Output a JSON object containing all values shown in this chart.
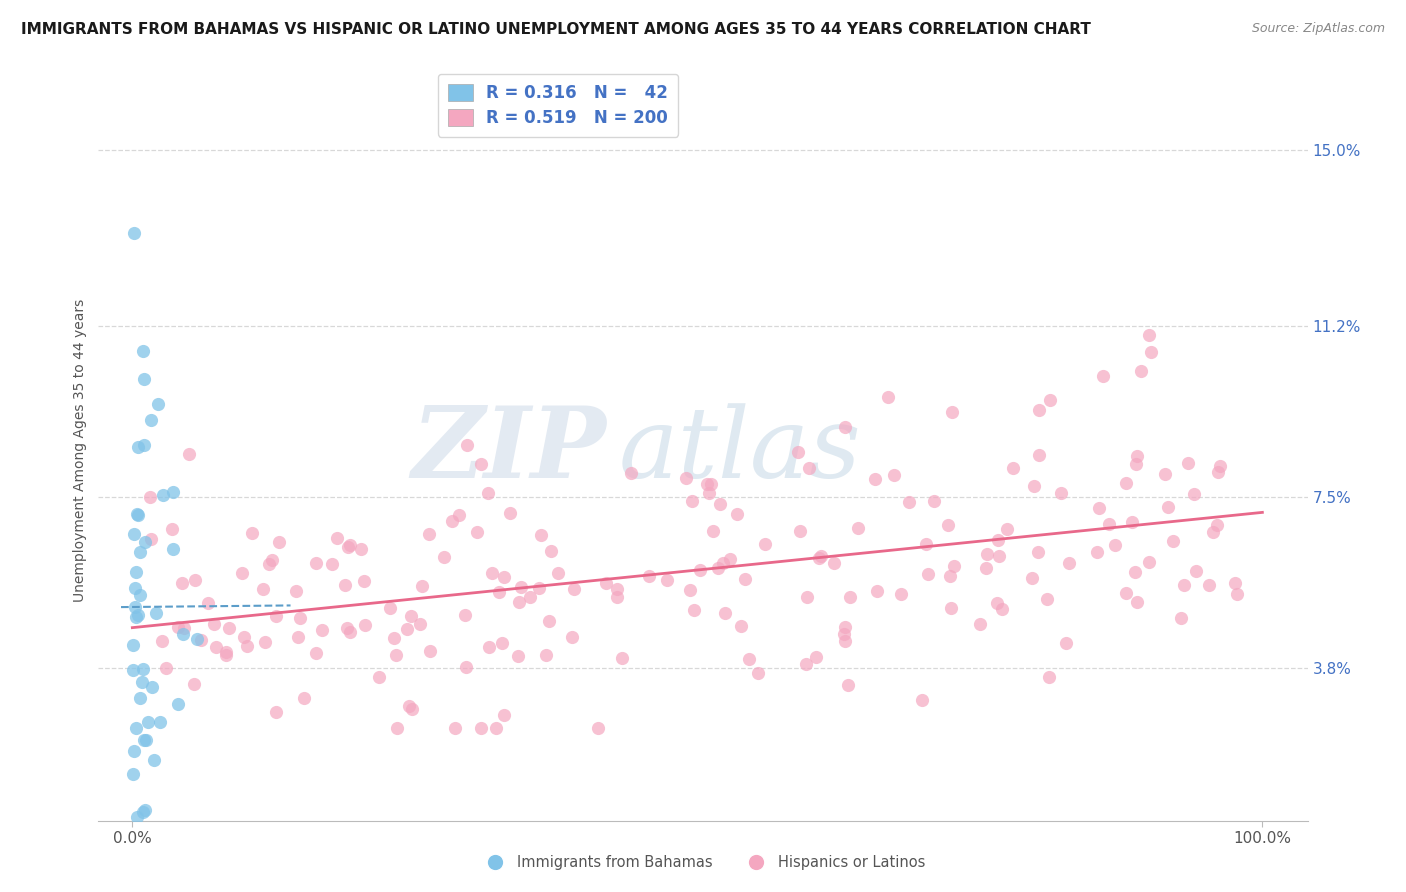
{
  "title": "IMMIGRANTS FROM BAHAMAS VS HISPANIC OR LATINO UNEMPLOYMENT AMONG AGES 35 TO 44 YEARS CORRELATION CHART",
  "source": "Source: ZipAtlas.com",
  "ylabel": "Unemployment Among Ages 35 to 44 years",
  "xlim_min": -3,
  "xlim_max": 104,
  "ylim_min": 0.5,
  "ylim_max": 16.5,
  "yticks": [
    3.8,
    7.5,
    11.2,
    15.0
  ],
  "ytick_labels": [
    "3.8%",
    "7.5%",
    "11.2%",
    "15.0%"
  ],
  "xtick_labels": [
    "0.0%",
    "100.0%"
  ],
  "blue_R": 0.316,
  "blue_N": 42,
  "pink_R": 0.519,
  "pink_N": 200,
  "blue_color": "#81c3e8",
  "pink_color": "#f4a7c0",
  "blue_line_color": "#5b9dc9",
  "pink_line_color": "#e8688a",
  "label_color": "#4472c4",
  "grid_color": "#d8d8d8",
  "legend_label_blue": "Immigrants from Bahamas",
  "legend_label_pink": "Hispanics or Latinos",
  "watermark_zip": "ZIP",
  "watermark_atlas": "atlas",
  "title_fontsize": 11,
  "source_fontsize": 9,
  "axis_label_fontsize": 10,
  "tick_fontsize": 11,
  "legend_fontsize": 12
}
